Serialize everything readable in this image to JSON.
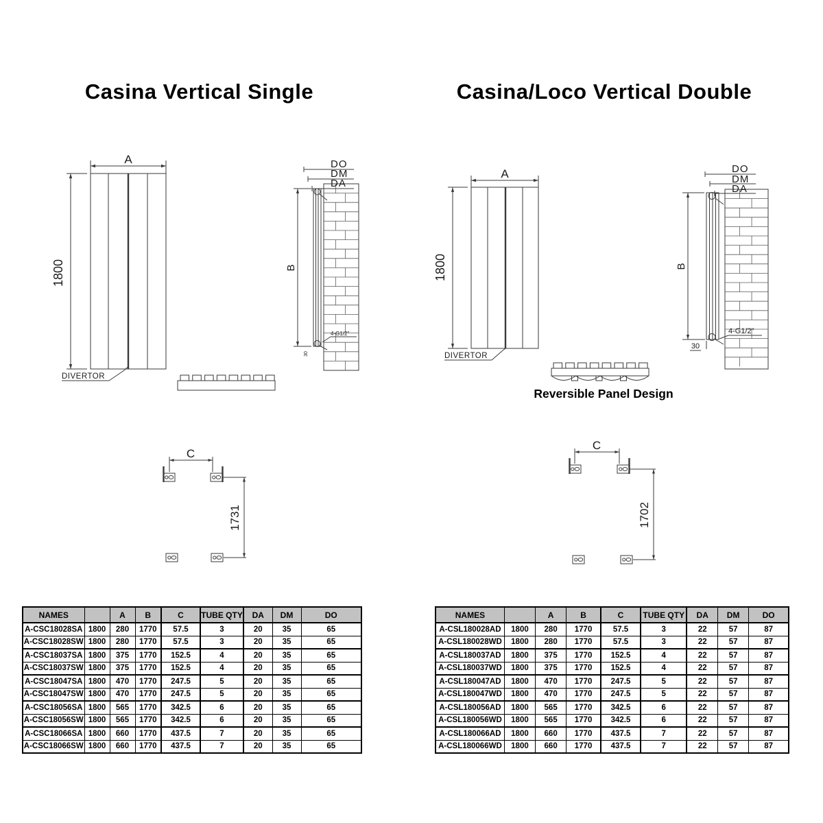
{
  "left": {
    "title": "Casina Vertical Single",
    "front": {
      "width_label": "A",
      "height_label": "1800",
      "divertor_label": "DIVERTOR"
    },
    "side": {
      "do_label": "DO",
      "dm_label": "DM",
      "da_label": "DA",
      "height_label": "B",
      "fitting_label": "4-G1/2''",
      "offset_label": "30"
    },
    "brackets": {
      "width_label": "C",
      "height_label": "1731"
    },
    "table": {
      "headers": [
        "NAMES",
        "",
        "A",
        "B",
        "C",
        "TUBE QTY",
        "DA",
        "DM",
        "DO"
      ],
      "rows": [
        [
          "A-CSC18028SA",
          "1800",
          "280",
          "1770",
          "57.5",
          "3",
          "20",
          "35",
          "65"
        ],
        [
          "A-CSC18028SW",
          "1800",
          "280",
          "1770",
          "57.5",
          "3",
          "20",
          "35",
          "65"
        ],
        [
          "A-CSC18037SA",
          "1800",
          "375",
          "1770",
          "152.5",
          "4",
          "20",
          "35",
          "65"
        ],
        [
          "A-CSC18037SW",
          "1800",
          "375",
          "1770",
          "152.5",
          "4",
          "20",
          "35",
          "65"
        ],
        [
          "A-CSC18047SA",
          "1800",
          "470",
          "1770",
          "247.5",
          "5",
          "20",
          "35",
          "65"
        ],
        [
          "A-CSC18047SW",
          "1800",
          "470",
          "1770",
          "247.5",
          "5",
          "20",
          "35",
          "65"
        ],
        [
          "A-CSC18056SA",
          "1800",
          "565",
          "1770",
          "342.5",
          "6",
          "20",
          "35",
          "65"
        ],
        [
          "A-CSC18056SW",
          "1800",
          "565",
          "1770",
          "342.5",
          "6",
          "20",
          "35",
          "65"
        ],
        [
          "A-CSC18066SA",
          "1800",
          "660",
          "1770",
          "437.5",
          "7",
          "20",
          "35",
          "65"
        ],
        [
          "A-CSC18066SW",
          "1800",
          "660",
          "1770",
          "437.5",
          "7",
          "20",
          "35",
          "65"
        ]
      ]
    }
  },
  "right": {
    "title": "Casina/Loco Vertical Double",
    "front": {
      "width_label": "A",
      "height_label": "1800",
      "divertor_label": "DIVERTOR"
    },
    "side": {
      "do_label": "DO",
      "dm_label": "DM",
      "da_label": "DA",
      "height_label": "B",
      "fitting_label": "4-G1/2\"",
      "offset_label": "30"
    },
    "top_view_label": "Reversible Panel Design",
    "brackets": {
      "width_label": "C",
      "height_label": "1702"
    },
    "table": {
      "headers": [
        "NAMES",
        "",
        "A",
        "B",
        "C",
        "TUBE QTY",
        "DA",
        "DM",
        "DO"
      ],
      "rows": [
        [
          "A-CSL180028AD",
          "1800",
          "280",
          "1770",
          "57.5",
          "3",
          "22",
          "57",
          "87"
        ],
        [
          "A-CSL180028WD",
          "1800",
          "280",
          "1770",
          "57.5",
          "3",
          "22",
          "57",
          "87"
        ],
        [
          "A-CSL180037AD",
          "1800",
          "375",
          "1770",
          "152.5",
          "4",
          "22",
          "57",
          "87"
        ],
        [
          "A-CSL180037WD",
          "1800",
          "375",
          "1770",
          "152.5",
          "4",
          "22",
          "57",
          "87"
        ],
        [
          "A-CSL180047AD",
          "1800",
          "470",
          "1770",
          "247.5",
          "5",
          "22",
          "57",
          "87"
        ],
        [
          "A-CSL180047WD",
          "1800",
          "470",
          "1770",
          "247.5",
          "5",
          "22",
          "57",
          "87"
        ],
        [
          "A-CSL180056AD",
          "1800",
          "565",
          "1770",
          "342.5",
          "6",
          "22",
          "57",
          "87"
        ],
        [
          "A-CSL180056WD",
          "1800",
          "565",
          "1770",
          "342.5",
          "6",
          "22",
          "57",
          "87"
        ],
        [
          "A-CSL180066AD",
          "1800",
          "660",
          "1770",
          "437.5",
          "7",
          "22",
          "57",
          "87"
        ],
        [
          "A-CSL180066WD",
          "1800",
          "660",
          "1770",
          "437.5",
          "7",
          "22",
          "57",
          "87"
        ]
      ]
    }
  }
}
